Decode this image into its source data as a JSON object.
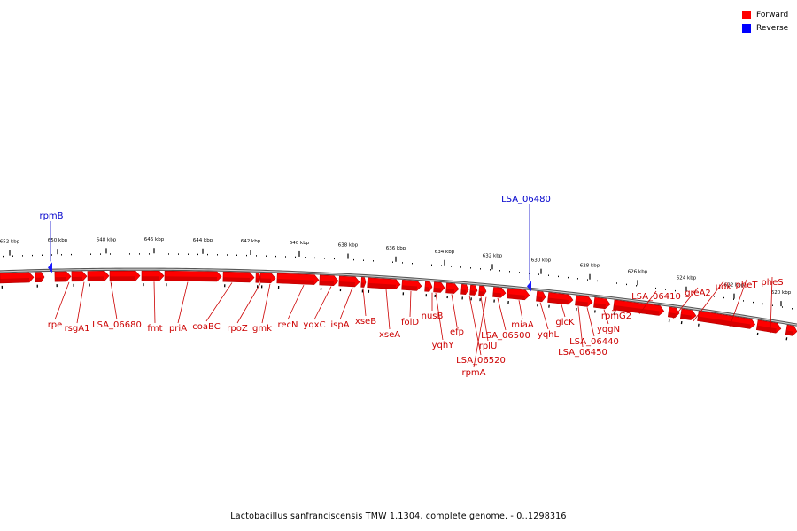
{
  "legend": {
    "items": [
      {
        "label": "Forward",
        "color": "#ff0000"
      },
      {
        "label": "Reverse",
        "color": "#0000ff"
      }
    ]
  },
  "caption": "Lactobacillus sanfranciscensis TMW 1.1304, complete genome. - 0..1298316",
  "colors": {
    "forward": "#ff0000",
    "forward_dark": "#b80000",
    "reverse": "#1a1aff",
    "backbone": "#8a8a8a",
    "forward_label": "#cc0000",
    "reverse_label": "#0000cc"
  },
  "scale": {
    "ticks": [
      "652 kbp",
      "650 kbp",
      "648 kbp",
      "646 kbp",
      "644 kbp",
      "642 kbp",
      "640 kbp",
      "638 kbp",
      "636 kbp",
      "634 kbp",
      "632 kbp",
      "630 kbp",
      "628 kbp",
      "626 kbp",
      "624 kbp",
      "622 kbp",
      "620 kbp"
    ]
  },
  "genes": {
    "forward_labels": [
      "rpe",
      "rsgA1",
      "LSA_06680",
      "fmt",
      "priA",
      "coaBC",
      "rpoZ",
      "gmk",
      "recN",
      "yqxC",
      "ispA",
      "xseB",
      "xseA",
      "folD",
      "nusB",
      "yqhY",
      "efp",
      "LSA_06520",
      "rplU",
      "rpmA",
      "LSA_06500",
      "miaA",
      "yqhL",
      "glcK",
      "LSA_06450",
      "LSA_06440",
      "yqgN",
      "rpmG2",
      "LSA_06410",
      "greA2",
      "udk",
      "pheT",
      "pheS"
    ],
    "reverse_labels": [
      "rpmB",
      "LSA_06480"
    ]
  }
}
